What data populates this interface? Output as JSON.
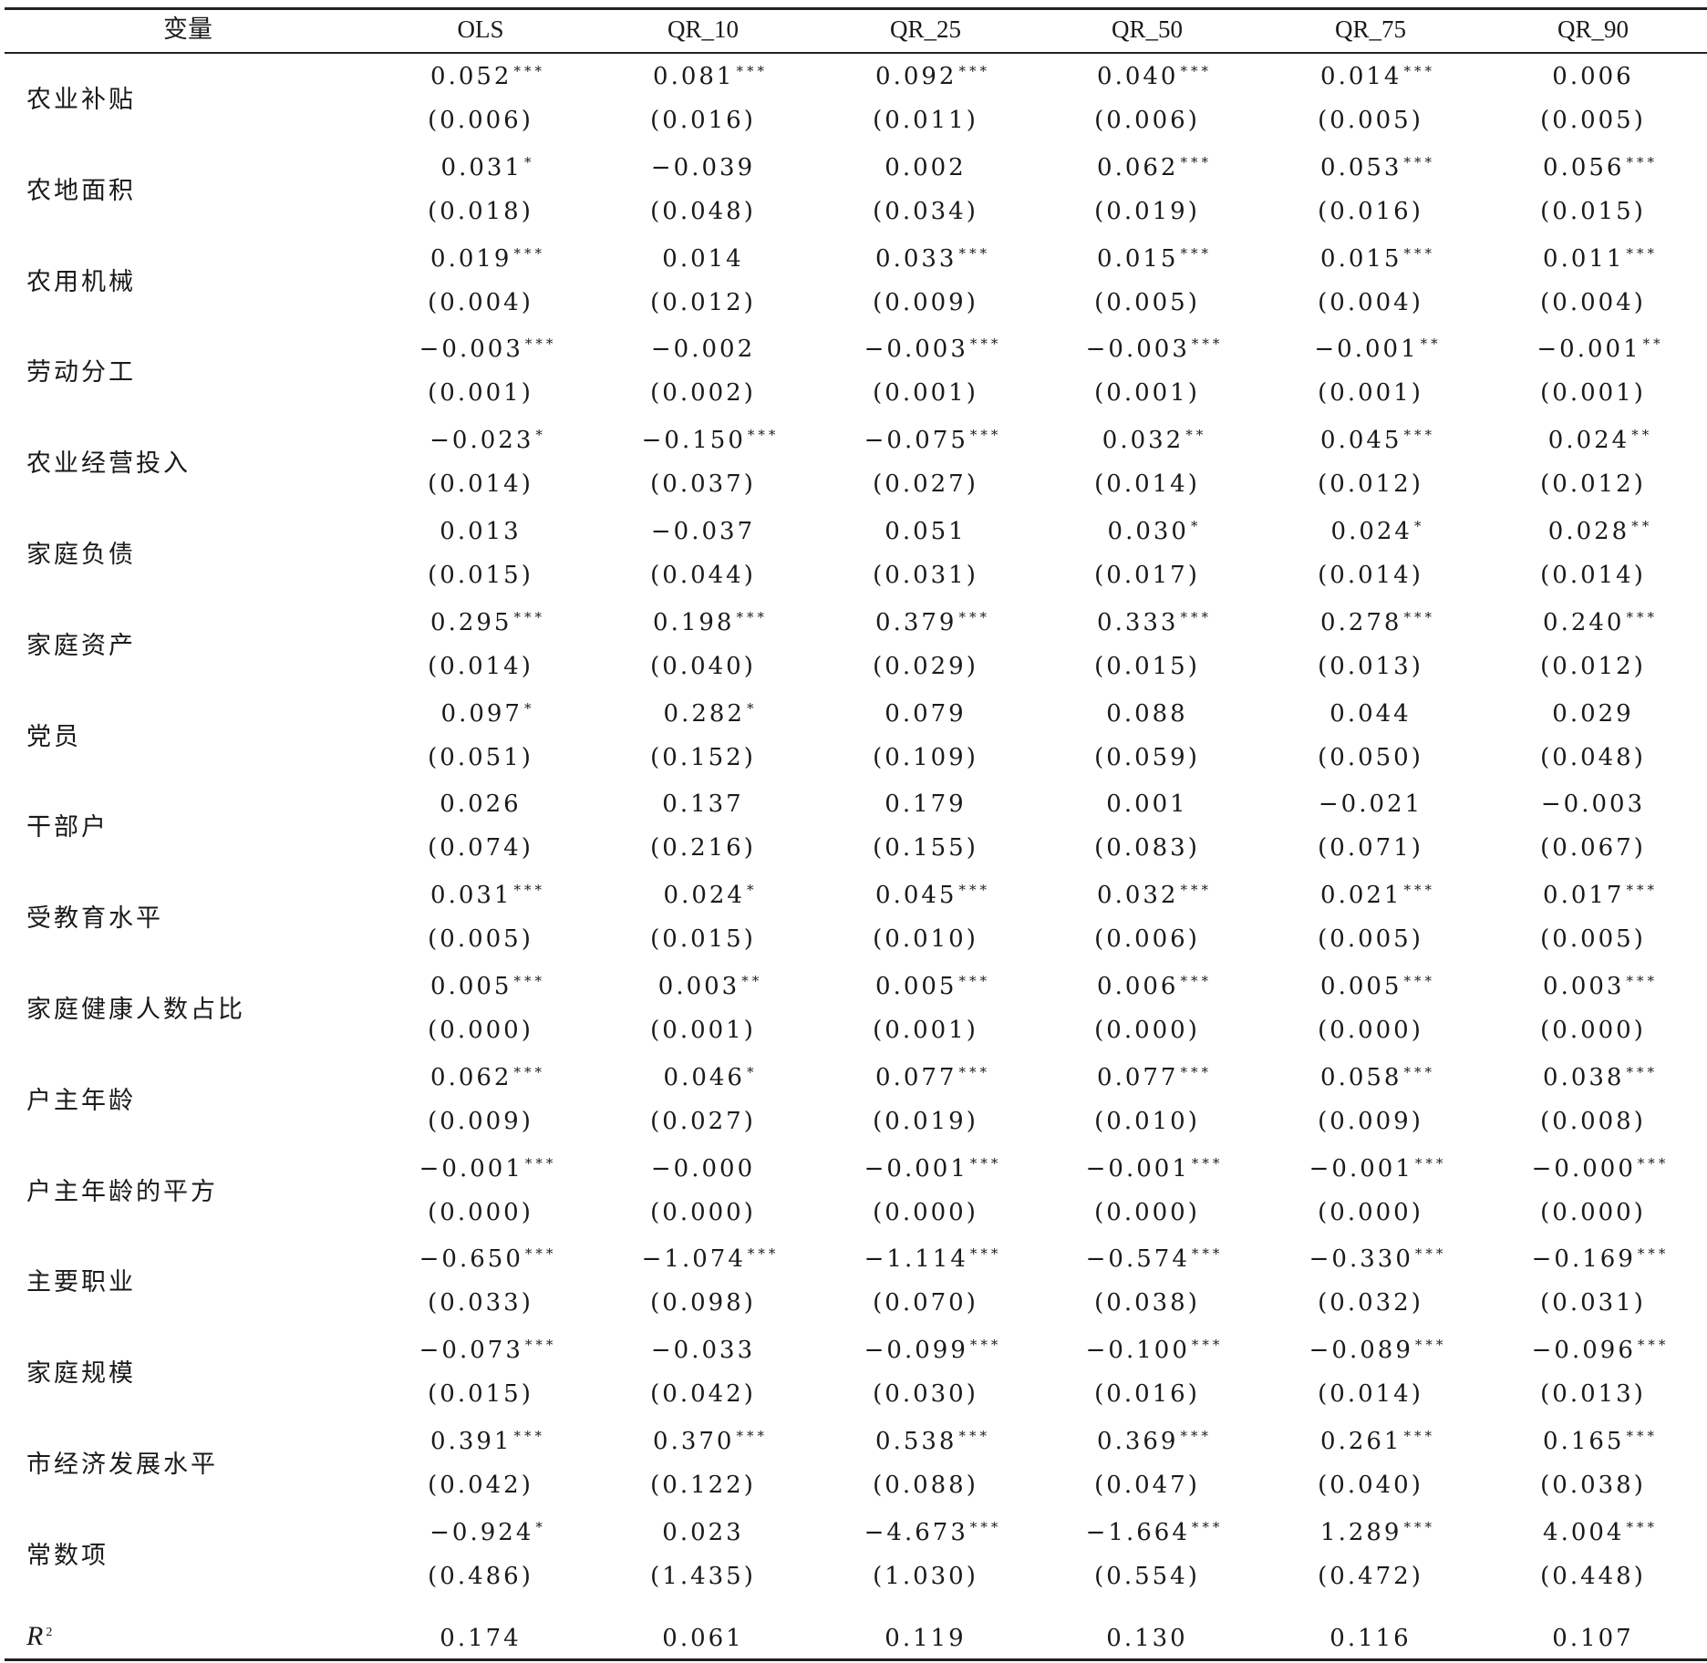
{
  "headers": [
    "变量",
    "OLS",
    "QR_10",
    "QR_25",
    "QR_50",
    "QR_75",
    "QR_90"
  ],
  "rows": [
    {
      "label": "农业补贴",
      "coef": [
        [
          "0.052",
          "***"
        ],
        [
          "0.081",
          "***"
        ],
        [
          "0.092",
          "***"
        ],
        [
          "0.040",
          "***"
        ],
        [
          "0.014",
          "***"
        ],
        [
          "0.006",
          ""
        ]
      ],
      "se": [
        "(0.006)",
        "(0.016)",
        "(0.011)",
        "(0.006)",
        "(0.005)",
        "(0.005)"
      ]
    },
    {
      "label": "农地面积",
      "coef": [
        [
          "0.031",
          "*"
        ],
        [
          "−0.039",
          ""
        ],
        [
          "0.002",
          ""
        ],
        [
          "0.062",
          "***"
        ],
        [
          "0.053",
          "***"
        ],
        [
          "0.056",
          "***"
        ]
      ],
      "se": [
        "(0.018)",
        "(0.048)",
        "(0.034)",
        "(0.019)",
        "(0.016)",
        "(0.015)"
      ]
    },
    {
      "label": "农用机械",
      "coef": [
        [
          "0.019",
          "***"
        ],
        [
          "0.014",
          ""
        ],
        [
          "0.033",
          "***"
        ],
        [
          "0.015",
          "***"
        ],
        [
          "0.015",
          "***"
        ],
        [
          "0.011",
          "***"
        ]
      ],
      "se": [
        "(0.004)",
        "(0.012)",
        "(0.009)",
        "(0.005)",
        "(0.004)",
        "(0.004)"
      ]
    },
    {
      "label": "劳动分工",
      "coef": [
        [
          "−0.003",
          "***"
        ],
        [
          "−0.002",
          ""
        ],
        [
          "−0.003",
          "***"
        ],
        [
          "−0.003",
          "***"
        ],
        [
          "−0.001",
          "**"
        ],
        [
          "−0.001",
          "**"
        ]
      ],
      "se": [
        "(0.001)",
        "(0.002)",
        "(0.001)",
        "(0.001)",
        "(0.001)",
        "(0.001)"
      ]
    },
    {
      "label": "农业经营投入",
      "coef": [
        [
          "−0.023",
          "*"
        ],
        [
          "−0.150",
          "***"
        ],
        [
          "−0.075",
          "***"
        ],
        [
          "0.032",
          "**"
        ],
        [
          "0.045",
          "***"
        ],
        [
          "0.024",
          "**"
        ]
      ],
      "se": [
        "(0.014)",
        "(0.037)",
        "(0.027)",
        "(0.014)",
        "(0.012)",
        "(0.012)"
      ]
    },
    {
      "label": "家庭负债",
      "coef": [
        [
          "0.013",
          ""
        ],
        [
          "−0.037",
          ""
        ],
        [
          "0.051",
          ""
        ],
        [
          "0.030",
          "*"
        ],
        [
          "0.024",
          "*"
        ],
        [
          "0.028",
          "**"
        ]
      ],
      "se": [
        "(0.015)",
        "(0.044)",
        "(0.031)",
        "(0.017)",
        "(0.014)",
        "(0.014)"
      ]
    },
    {
      "label": "家庭资产",
      "coef": [
        [
          "0.295",
          "***"
        ],
        [
          "0.198",
          "***"
        ],
        [
          "0.379",
          "***"
        ],
        [
          "0.333",
          "***"
        ],
        [
          "0.278",
          "***"
        ],
        [
          "0.240",
          "***"
        ]
      ],
      "se": [
        "(0.014)",
        "(0.040)",
        "(0.029)",
        "(0.015)",
        "(0.013)",
        "(0.012)"
      ]
    },
    {
      "label": "党员",
      "coef": [
        [
          "0.097",
          "*"
        ],
        [
          "0.282",
          "*"
        ],
        [
          "0.079",
          ""
        ],
        [
          "0.088",
          ""
        ],
        [
          "0.044",
          ""
        ],
        [
          "0.029",
          ""
        ]
      ],
      "se": [
        "(0.051)",
        "(0.152)",
        "(0.109)",
        "(0.059)",
        "(0.050)",
        "(0.048)"
      ]
    },
    {
      "label": "干部户",
      "coef": [
        [
          "0.026",
          ""
        ],
        [
          "0.137",
          ""
        ],
        [
          "0.179",
          ""
        ],
        [
          "0.001",
          ""
        ],
        [
          "−0.021",
          ""
        ],
        [
          "−0.003",
          ""
        ]
      ],
      "se": [
        "(0.074)",
        "(0.216)",
        "(0.155)",
        "(0.083)",
        "(0.071)",
        "(0.067)"
      ]
    },
    {
      "label": "受教育水平",
      "coef": [
        [
          "0.031",
          "***"
        ],
        [
          "0.024",
          "*"
        ],
        [
          "0.045",
          "***"
        ],
        [
          "0.032",
          "***"
        ],
        [
          "0.021",
          "***"
        ],
        [
          "0.017",
          "***"
        ]
      ],
      "se": [
        "(0.005)",
        "(0.015)",
        "(0.010)",
        "(0.006)",
        "(0.005)",
        "(0.005)"
      ]
    },
    {
      "label": "家庭健康人数占比",
      "coef": [
        [
          "0.005",
          "***"
        ],
        [
          "0.003",
          "**"
        ],
        [
          "0.005",
          "***"
        ],
        [
          "0.006",
          "***"
        ],
        [
          "0.005",
          "***"
        ],
        [
          "0.003",
          "***"
        ]
      ],
      "se": [
        "(0.000)",
        "(0.001)",
        "(0.001)",
        "(0.000)",
        "(0.000)",
        "(0.000)"
      ]
    },
    {
      "label": "户主年龄",
      "coef": [
        [
          "0.062",
          "***"
        ],
        [
          "0.046",
          "*"
        ],
        [
          "0.077",
          "***"
        ],
        [
          "0.077",
          "***"
        ],
        [
          "0.058",
          "***"
        ],
        [
          "0.038",
          "***"
        ]
      ],
      "se": [
        "(0.009)",
        "(0.027)",
        "(0.019)",
        "(0.010)",
        "(0.009)",
        "(0.008)"
      ]
    },
    {
      "label": "户主年龄的平方",
      "coef": [
        [
          "−0.001",
          "***"
        ],
        [
          "−0.000",
          ""
        ],
        [
          "−0.001",
          "***"
        ],
        [
          "−0.001",
          "***"
        ],
        [
          "−0.001",
          "***"
        ],
        [
          "−0.000",
          "***"
        ]
      ],
      "se": [
        "(0.000)",
        "(0.000)",
        "(0.000)",
        "(0.000)",
        "(0.000)",
        "(0.000)"
      ]
    },
    {
      "label": "主要职业",
      "coef": [
        [
          "−0.650",
          "***"
        ],
        [
          "−1.074",
          "***"
        ],
        [
          "−1.114",
          "***"
        ],
        [
          "−0.574",
          "***"
        ],
        [
          "−0.330",
          "***"
        ],
        [
          "−0.169",
          "***"
        ]
      ],
      "se": [
        "(0.033)",
        "(0.098)",
        "(0.070)",
        "(0.038)",
        "(0.032)",
        "(0.031)"
      ]
    },
    {
      "label": "家庭规模",
      "coef": [
        [
          "−0.073",
          "***"
        ],
        [
          "−0.033",
          ""
        ],
        [
          "−0.099",
          "***"
        ],
        [
          "−0.100",
          "***"
        ],
        [
          "−0.089",
          "***"
        ],
        [
          "−0.096",
          "***"
        ]
      ],
      "se": [
        "(0.015)",
        "(0.042)",
        "(0.030)",
        "(0.016)",
        "(0.014)",
        "(0.013)"
      ]
    },
    {
      "label": "市经济发展水平",
      "coef": [
        [
          "0.391",
          "***"
        ],
        [
          "0.370",
          "***"
        ],
        [
          "0.538",
          "***"
        ],
        [
          "0.369",
          "***"
        ],
        [
          "0.261",
          "***"
        ],
        [
          "0.165",
          "***"
        ]
      ],
      "se": [
        "(0.042)",
        "(0.122)",
        "(0.088)",
        "(0.047)",
        "(0.040)",
        "(0.038)"
      ]
    },
    {
      "label": "常数项",
      "coef": [
        [
          "−0.924",
          "*"
        ],
        [
          "0.023",
          ""
        ],
        [
          "−4.673",
          "***"
        ],
        [
          "−1.664",
          "***"
        ],
        [
          "1.289",
          "***"
        ],
        [
          "4.004",
          "***"
        ]
      ],
      "se": [
        "(0.486)",
        "(1.435)",
        "(1.030)",
        "(0.554)",
        "(0.472)",
        "(0.448)"
      ]
    }
  ],
  "r2": {
    "label": "R",
    "sup": "2",
    "values": [
      "0.174",
      "0.061",
      "0.119",
      "0.130",
      "0.116",
      "0.107"
    ]
  }
}
